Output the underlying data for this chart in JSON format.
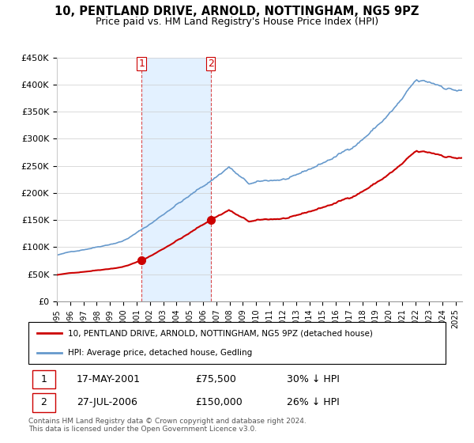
{
  "title": "10, PENTLAND DRIVE, ARNOLD, NOTTINGHAM, NG5 9PZ",
  "subtitle": "Price paid vs. HM Land Registry's House Price Index (HPI)",
  "legend_line1": "10, PENTLAND DRIVE, ARNOLD, NOTTINGHAM, NG5 9PZ (detached house)",
  "legend_line2": "HPI: Average price, detached house, Gedling",
  "table_row1": [
    "1",
    "17-MAY-2001",
    "£75,500",
    "30% ↓ HPI"
  ],
  "table_row2": [
    "2",
    "27-JUL-2006",
    "£150,000",
    "26% ↓ HPI"
  ],
  "footnote": "Contains HM Land Registry data © Crown copyright and database right 2024.\nThis data is licensed under the Open Government Licence v3.0.",
  "hpi_color": "#6699cc",
  "paid_color": "#cc0000",
  "shade_color": "#ddeeff",
  "marker_color": "#cc0000",
  "purchase1_x": 2001.38,
  "purchase1_y": 75500,
  "purchase2_x": 2006.57,
  "purchase2_y": 150000,
  "ylim": [
    0,
    450000
  ],
  "xlim_start": 1995,
  "xlim_end": 2025.5,
  "ylabel_ticks": [
    0,
    50000,
    100000,
    150000,
    200000,
    250000,
    300000,
    350000,
    400000,
    450000
  ],
  "ylabel_labels": [
    "£0",
    "£50K",
    "£100K",
    "£150K",
    "£200K",
    "£250K",
    "£300K",
    "£350K",
    "£400K",
    "£450K"
  ],
  "xtick_years": [
    1995,
    1996,
    1997,
    1998,
    1999,
    2000,
    2001,
    2002,
    2003,
    2004,
    2005,
    2006,
    2007,
    2008,
    2009,
    2010,
    2011,
    2012,
    2013,
    2014,
    2015,
    2016,
    2017,
    2018,
    2019,
    2020,
    2021,
    2022,
    2023,
    2024,
    2025
  ]
}
